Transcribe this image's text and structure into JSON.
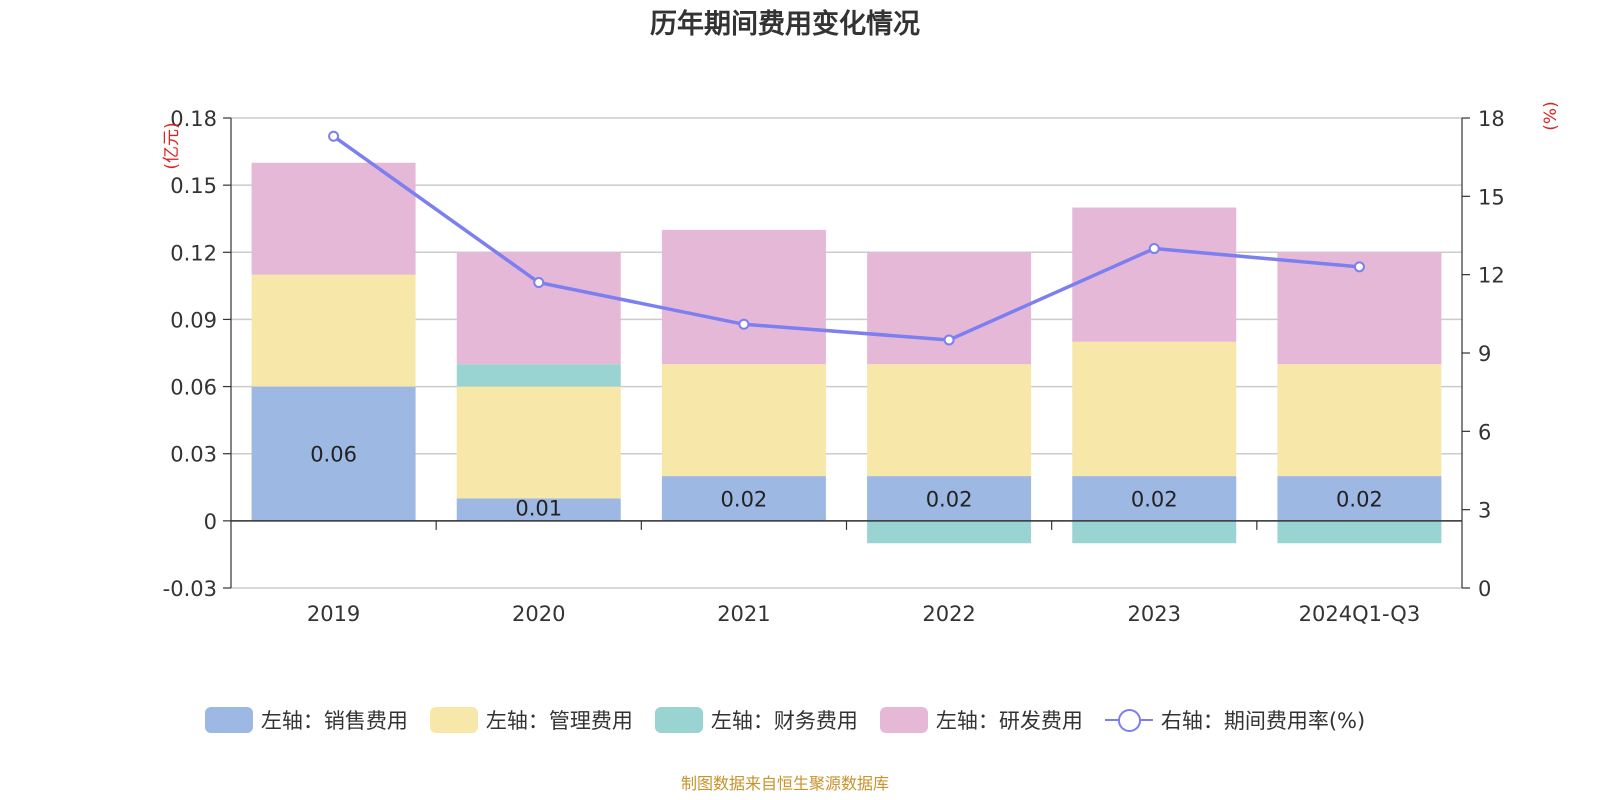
{
  "chart_data": {
    "type": "bar",
    "title": "历年期间费用变化情况",
    "categories": [
      "2019",
      "2020",
      "2021",
      "2022",
      "2023",
      "2024Q1-Q3"
    ],
    "series": [
      {
        "name": "左轴：销售费用",
        "axis": "left",
        "type": "stacked-bar",
        "color": "#9db8e2",
        "values": [
          0.06,
          0.01,
          0.02,
          0.02,
          0.02,
          0.02
        ],
        "labels": [
          "0.06",
          "0.01",
          "0.02",
          "0.02",
          "0.02",
          "0.02"
        ]
      },
      {
        "name": "左轴：管理费用",
        "axis": "left",
        "type": "stacked-bar",
        "color": "#f7e7a9",
        "values": [
          0.05,
          0.05,
          0.05,
          0.05,
          0.06,
          0.05
        ]
      },
      {
        "name": "左轴：财务费用",
        "axis": "left",
        "type": "stacked-bar",
        "color": "#9ad4d2",
        "values": [
          0,
          0.01,
          0,
          -0.01,
          -0.01,
          -0.01
        ]
      },
      {
        "name": "左轴：研发费用",
        "axis": "left",
        "type": "stacked-bar",
        "color": "#e6b8d8",
        "values": [
          0.05,
          0.05,
          0.06,
          0.05,
          0.06,
          0.05
        ]
      },
      {
        "name": "右轴：期间费用率(%)",
        "axis": "right",
        "type": "line",
        "color": "#7b7ff0",
        "values": [
          17.3,
          11.7,
          10.1,
          9.5,
          13.0,
          12.3
        ]
      }
    ],
    "left_axis": {
      "unit": "(亿元)",
      "min": -0.03,
      "max": 0.18,
      "ticks": [
        0.18,
        0.15,
        0.12,
        0.09,
        0.06,
        0.03,
        0,
        -0.03
      ],
      "tick_labels": [
        "0.18",
        "0.15",
        "0.12",
        "0.09",
        "0.06",
        "0.03",
        "0",
        "-0.03"
      ]
    },
    "right_axis": {
      "unit": "(%)",
      "min": 0,
      "max": 18,
      "ticks": [
        18,
        15,
        12,
        9,
        6,
        3,
        0
      ],
      "tick_labels": [
        "18",
        "15",
        "12",
        "9",
        "6",
        "3",
        "0"
      ]
    },
    "grid": true,
    "legend_position": "bottom",
    "axis_unit_color": "#e02020"
  },
  "source_text": "制图数据来自恒生聚源数据库"
}
